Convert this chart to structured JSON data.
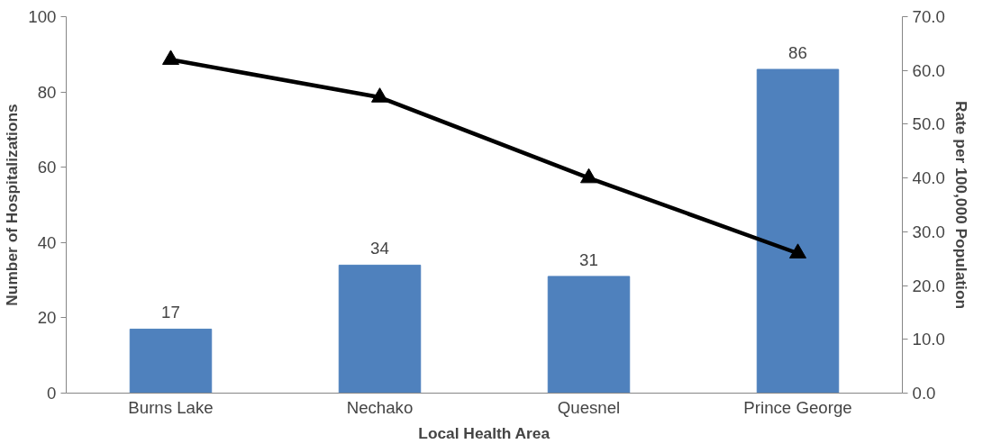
{
  "chart_data": {
    "type": "bar",
    "xlabel": "Local Health Area",
    "ylabel": "Number of Hospitalizations",
    "y2label": "Rate per 100,000 Population",
    "categories": [
      "Burns Lake",
      "Nechako",
      "Quesnel",
      "Prince George"
    ],
    "series": [
      {
        "color": "#4f81bd",
        "values": [
          17,
          34,
          31,
          86
        ],
        "value_labels": [
          "17",
          "34",
          "31",
          "86"
        ]
      },
      {
        "type": "line",
        "axis": "y2",
        "color": "#000000",
        "values": [
          62,
          55,
          40,
          26
        ]
      }
    ],
    "marker": "triangle",
    "line_style": "solid",
    "grid": false,
    "ylim": [
      0,
      100
    ],
    "yticks": [
      0,
      20,
      40,
      60,
      80,
      100
    ],
    "y2lim": [
      0,
      70
    ],
    "y2ticks": [
      {
        "value": 0,
        "label": "0.0"
      },
      {
        "value": 10,
        "label": "10.0"
      },
      {
        "value": 20,
        "label": "20.0"
      },
      {
        "value": 30,
        "label": "30.0"
      },
      {
        "value": 40,
        "label": "40.0"
      },
      {
        "value": 50,
        "label": "50.0"
      },
      {
        "value": 60,
        "label": "60.0"
      },
      {
        "value": 70,
        "label": "70.0"
      }
    ]
  }
}
